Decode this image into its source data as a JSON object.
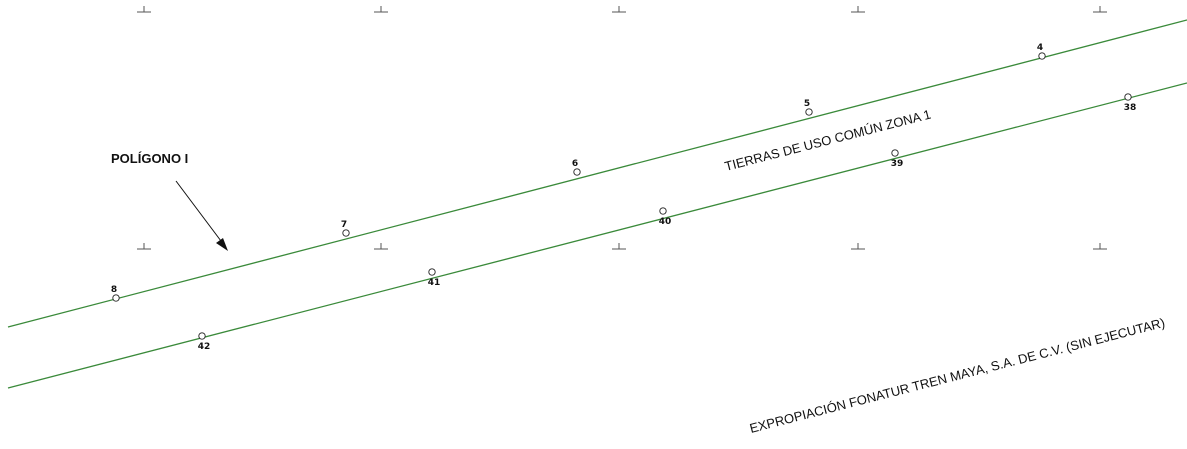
{
  "colors": {
    "boundary": "#3a8a3a",
    "text": "#111111"
  },
  "labels": {
    "poligono": "POLÍGONO I",
    "zone_label": "TIERRAS DE USO COMÚN ZONA 1",
    "expropriation_label": "EXPROPIACIÓN FONATUR TREN MAYA, S.A. DE C.V. (SIN EJECUTAR)"
  },
  "upper_vertices": [
    "8",
    "7",
    "6",
    "5",
    "4"
  ],
  "lower_vertices": [
    "42",
    "41",
    "40",
    "39",
    "38"
  ],
  "icons": {
    "grid_tick": "grid-tick-icon",
    "vertex": "vertex-marker-icon",
    "arrow": "north-arrow-pointer-icon"
  }
}
